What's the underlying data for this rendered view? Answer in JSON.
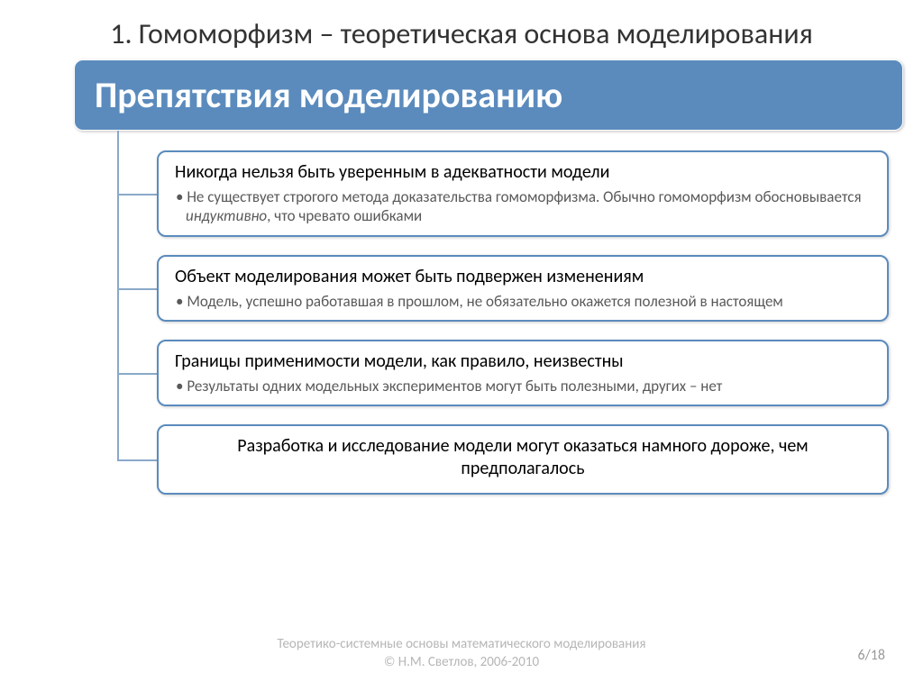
{
  "slide": {
    "title": "1. Гомоморфизм – теоретическая основа моделирования"
  },
  "diagram": {
    "header": "Препятствия моделированию",
    "header_bg": "#5b8bbd",
    "header_text_color": "#ffffff",
    "box_border_color": "#5b8bbd",
    "connector_color": "#8aa9c9",
    "items": [
      {
        "title": "Никогда нельзя быть уверенным в адекватности модели",
        "bullet_html": "Не существует строгого метода доказательства гомоморфизма. Обычно гомоморфизм обосновывается <em>индуктивно</em>, что чревато ошибками",
        "center": false
      },
      {
        "title": "Объект моделирования может быть подвержен изменениям",
        "bullet_html": "Модель, успешно работавшая в прошлом, не обязательно окажется полезной в настоящем",
        "center": false
      },
      {
        "title": "Границы применимости модели, как правило, неизвестны",
        "bullet_html": "Результаты одних модельных экспериментов могут быть полезными, других – нет",
        "center": false
      },
      {
        "title": "Разработка и исследование модели могут оказаться намного дороже, чем предполагалось",
        "bullet_html": "",
        "center": true
      }
    ]
  },
  "footer": {
    "line1": "Теоретико-системные основы математического моделирования",
    "line2": "© Н.М. Светлов, 2006-2010"
  },
  "page": "6/18",
  "colors": {
    "background": "#ffffff",
    "title_color": "#333333",
    "item_title_color": "#000000",
    "item_bullet_color": "#595959",
    "footer_color": "#b6b6b6"
  }
}
